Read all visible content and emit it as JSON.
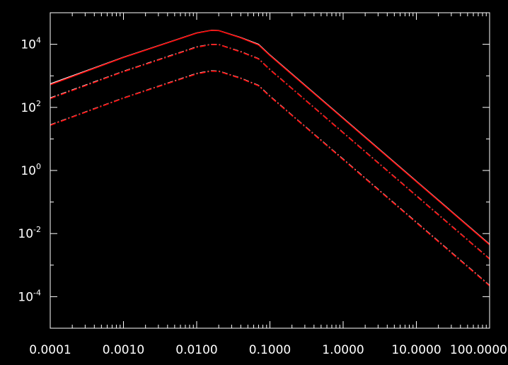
{
  "chart_data": {
    "type": "line",
    "title": "",
    "xlabel": "",
    "ylabel": "",
    "x_scale": "log",
    "y_scale": "log",
    "xlim": [
      0.0001,
      100
    ],
    "ylim": [
      1e-05,
      100000
    ],
    "grid": false,
    "legend": "none",
    "x_ticks": [
      {
        "value": 0.0001,
        "label": "0.0001"
      },
      {
        "value": 0.001,
        "label": "0.0010"
      },
      {
        "value": 0.01,
        "label": "0.0100"
      },
      {
        "value": 0.1,
        "label": "0.1000"
      },
      {
        "value": 1,
        "label": "1.0000"
      },
      {
        "value": 10,
        "label": "10.0000"
      },
      {
        "value": 100,
        "label": "100.0000"
      }
    ],
    "y_ticks": [
      {
        "value": 0.0001,
        "base": "10",
        "exp": "-4"
      },
      {
        "value": 0.01,
        "base": "10",
        "exp": "-2"
      },
      {
        "value": 1,
        "base": "10",
        "exp": "0"
      },
      {
        "value": 100,
        "base": "10",
        "exp": "2"
      },
      {
        "value": 10000,
        "base": "10",
        "exp": "4"
      }
    ],
    "colors": {
      "background": "#000000",
      "axes": "#ffffff",
      "model": "#ff0000",
      "reference": "#ffffff"
    },
    "series": [
      {
        "color": "#ffffff",
        "style": "solid",
        "x": [
          0.0001,
          0.001,
          0.01,
          0.0158,
          0.02,
          0.04,
          0.07,
          0.1,
          0.2,
          1,
          10,
          100
        ],
        "y": [
          560,
          3900,
          23000,
          28000,
          27500,
          16500,
          10000,
          4600,
          1150,
          46,
          0.46,
          0.0046
        ]
      },
      {
        "color": "#ff0000",
        "style": "solid",
        "x": [
          0.0001,
          0.001,
          0.01,
          0.0158,
          0.02,
          0.04,
          0.07,
          0.1,
          0.2,
          1,
          10,
          100
        ],
        "y": [
          520,
          3800,
          22500,
          27500,
          27000,
          16000,
          9500,
          4400,
          1100,
          44,
          0.44,
          0.0044
        ]
      },
      {
        "color": "#ffffff",
        "style": "dash-dot",
        "x": [
          0.0001,
          0.001,
          0.01,
          0.0158,
          0.02,
          0.04,
          0.07,
          0.1,
          0.2,
          1,
          10,
          100
        ],
        "y": [
          200,
          1400,
          8300,
          10000,
          9900,
          5900,
          3500,
          1600,
          400,
          16,
          0.16,
          0.0016
        ]
      },
      {
        "color": "#ff0000",
        "style": "dash-dot",
        "x": [
          0.0001,
          0.001,
          0.01,
          0.0158,
          0.02,
          0.04,
          0.07,
          0.1,
          0.2,
          1,
          10,
          100
        ],
        "y": [
          190,
          1350,
          8000,
          9800,
          9700,
          5700,
          3400,
          1550,
          390,
          15.5,
          0.155,
          0.00155
        ]
      },
      {
        "color": "#ffffff",
        "style": "dash-dot",
        "x": [
          0.0001,
          0.001,
          0.01,
          0.0158,
          0.02,
          0.04,
          0.07,
          0.1,
          0.2,
          1,
          10,
          100
        ],
        "y": [
          28,
          200,
          1200,
          1450,
          1420,
          850,
          500,
          230,
          57,
          2.3,
          0.023,
          0.00023
        ]
      },
      {
        "color": "#ff0000",
        "style": "dash-dot",
        "x": [
          0.0001,
          0.001,
          0.01,
          0.0158,
          0.02,
          0.04,
          0.07,
          0.1,
          0.2,
          1,
          10,
          100
        ],
        "y": [
          27,
          195,
          1150,
          1400,
          1380,
          820,
          480,
          220,
          55,
          2.2,
          0.022,
          0.00022
        ]
      }
    ]
  }
}
